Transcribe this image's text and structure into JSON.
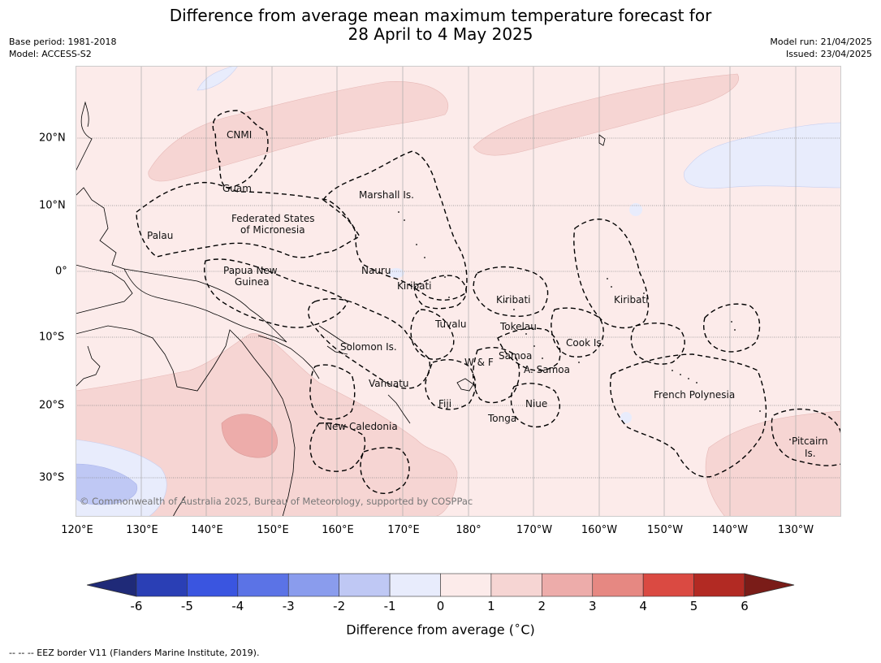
{
  "title_line1": "Difference from average mean maximum temperature forecast for",
  "title_line2": "28 April to 4 May 2025",
  "base_period": "Base period: 1981-2018",
  "model": "Model: ACCESS-S2",
  "model_run": "Model run: 21/04/2025",
  "issued": "Issued: 23/04/2025",
  "copyright": "© Commonwealth of Australia 2025, Bureau of Meteorology, supported by COSPPac",
  "longitude_labels": [
    "120°E",
    "130°E",
    "140°E",
    "150°E",
    "160°E",
    "170°E",
    "180°",
    "170°W",
    "160°W",
    "150°W",
    "140°W",
    "130°W"
  ],
  "latitude_labels": [
    "20°N",
    "10°N",
    "0°",
    "10°S",
    "20°S",
    "30°S"
  ],
  "place_labels": {
    "cnmi": "CNMI",
    "guam": "Guam",
    "marshall": "Marshall Is.",
    "fsm1": "Federated States",
    "fsm2": "of Micronesia",
    "palau": "Palau",
    "png1": "Papua New",
    "png2": "Guinea",
    "nauru": "Nauru",
    "kiribati_w": "Kiribati",
    "kiribati_c": "Kiribati",
    "kiribati_e": "Kiribati",
    "tuvalu": "Tuvalu",
    "tokelau": "Tokelau",
    "cook": "Cook Is.",
    "solomon": "Solomon Is.",
    "wf": "W & F",
    "samoa": "Samoa",
    "asamoa": "A. Samoa",
    "vanuatu": "Vanuatu",
    "fiji": "Fiji",
    "niue": "Niue",
    "tonga": "Tonga",
    "newcal": "New Caledonia",
    "frpoly": "French Polynesia",
    "pitcairn1": "Pitcairn",
    "pitcairn2": "Is."
  },
  "colorbar": {
    "ticks": [
      "-6",
      "-5",
      "-4",
      "-3",
      "-2",
      "-1",
      "0",
      "1",
      "2",
      "3",
      "4",
      "5",
      "6"
    ],
    "colors": [
      "#2a3fb5",
      "#3a55e0",
      "#5b73e6",
      "#8a9ced",
      "#bfc8f4",
      "#e8ecfc",
      "#fcebea",
      "#f6d5d3",
      "#edacaa",
      "#e68882",
      "#da4a42",
      "#b22a23"
    ],
    "low_color": "#1f2a78",
    "high_color": "#7a1c18",
    "label": "Difference from average ($^\\circ$C)"
  },
  "footnote": "--  --  -- EEZ border V11 (Flanders Marine Institute, 2019)."
}
